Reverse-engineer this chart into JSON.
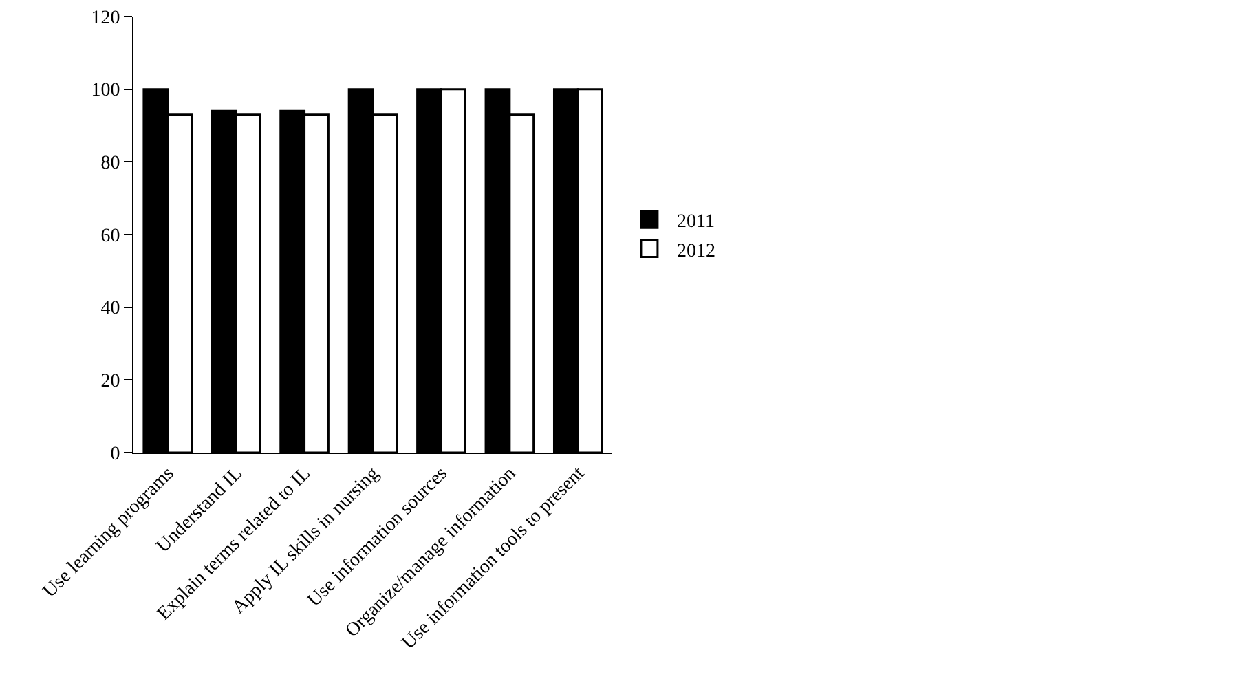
{
  "chart_data": {
    "type": "bar",
    "categories": [
      "Use learning programs",
      "Understand IL",
      "Explain terms related to IL",
      "Apply IL skills in nursing",
      "Use information sources",
      "Organize/manage information",
      "Use information tools to present"
    ],
    "series": [
      {
        "name": "2011",
        "color": "#000000",
        "values": [
          100,
          94,
          94,
          100,
          100,
          100,
          100
        ]
      },
      {
        "name": "2012",
        "color": "#ffffff",
        "values": [
          93,
          93,
          93,
          93,
          100,
          93,
          100
        ]
      }
    ],
    "ylim": [
      0,
      120
    ],
    "yticks": [
      0,
      20,
      40,
      60,
      80,
      100,
      120
    ],
    "grid": false,
    "legend": "right"
  }
}
